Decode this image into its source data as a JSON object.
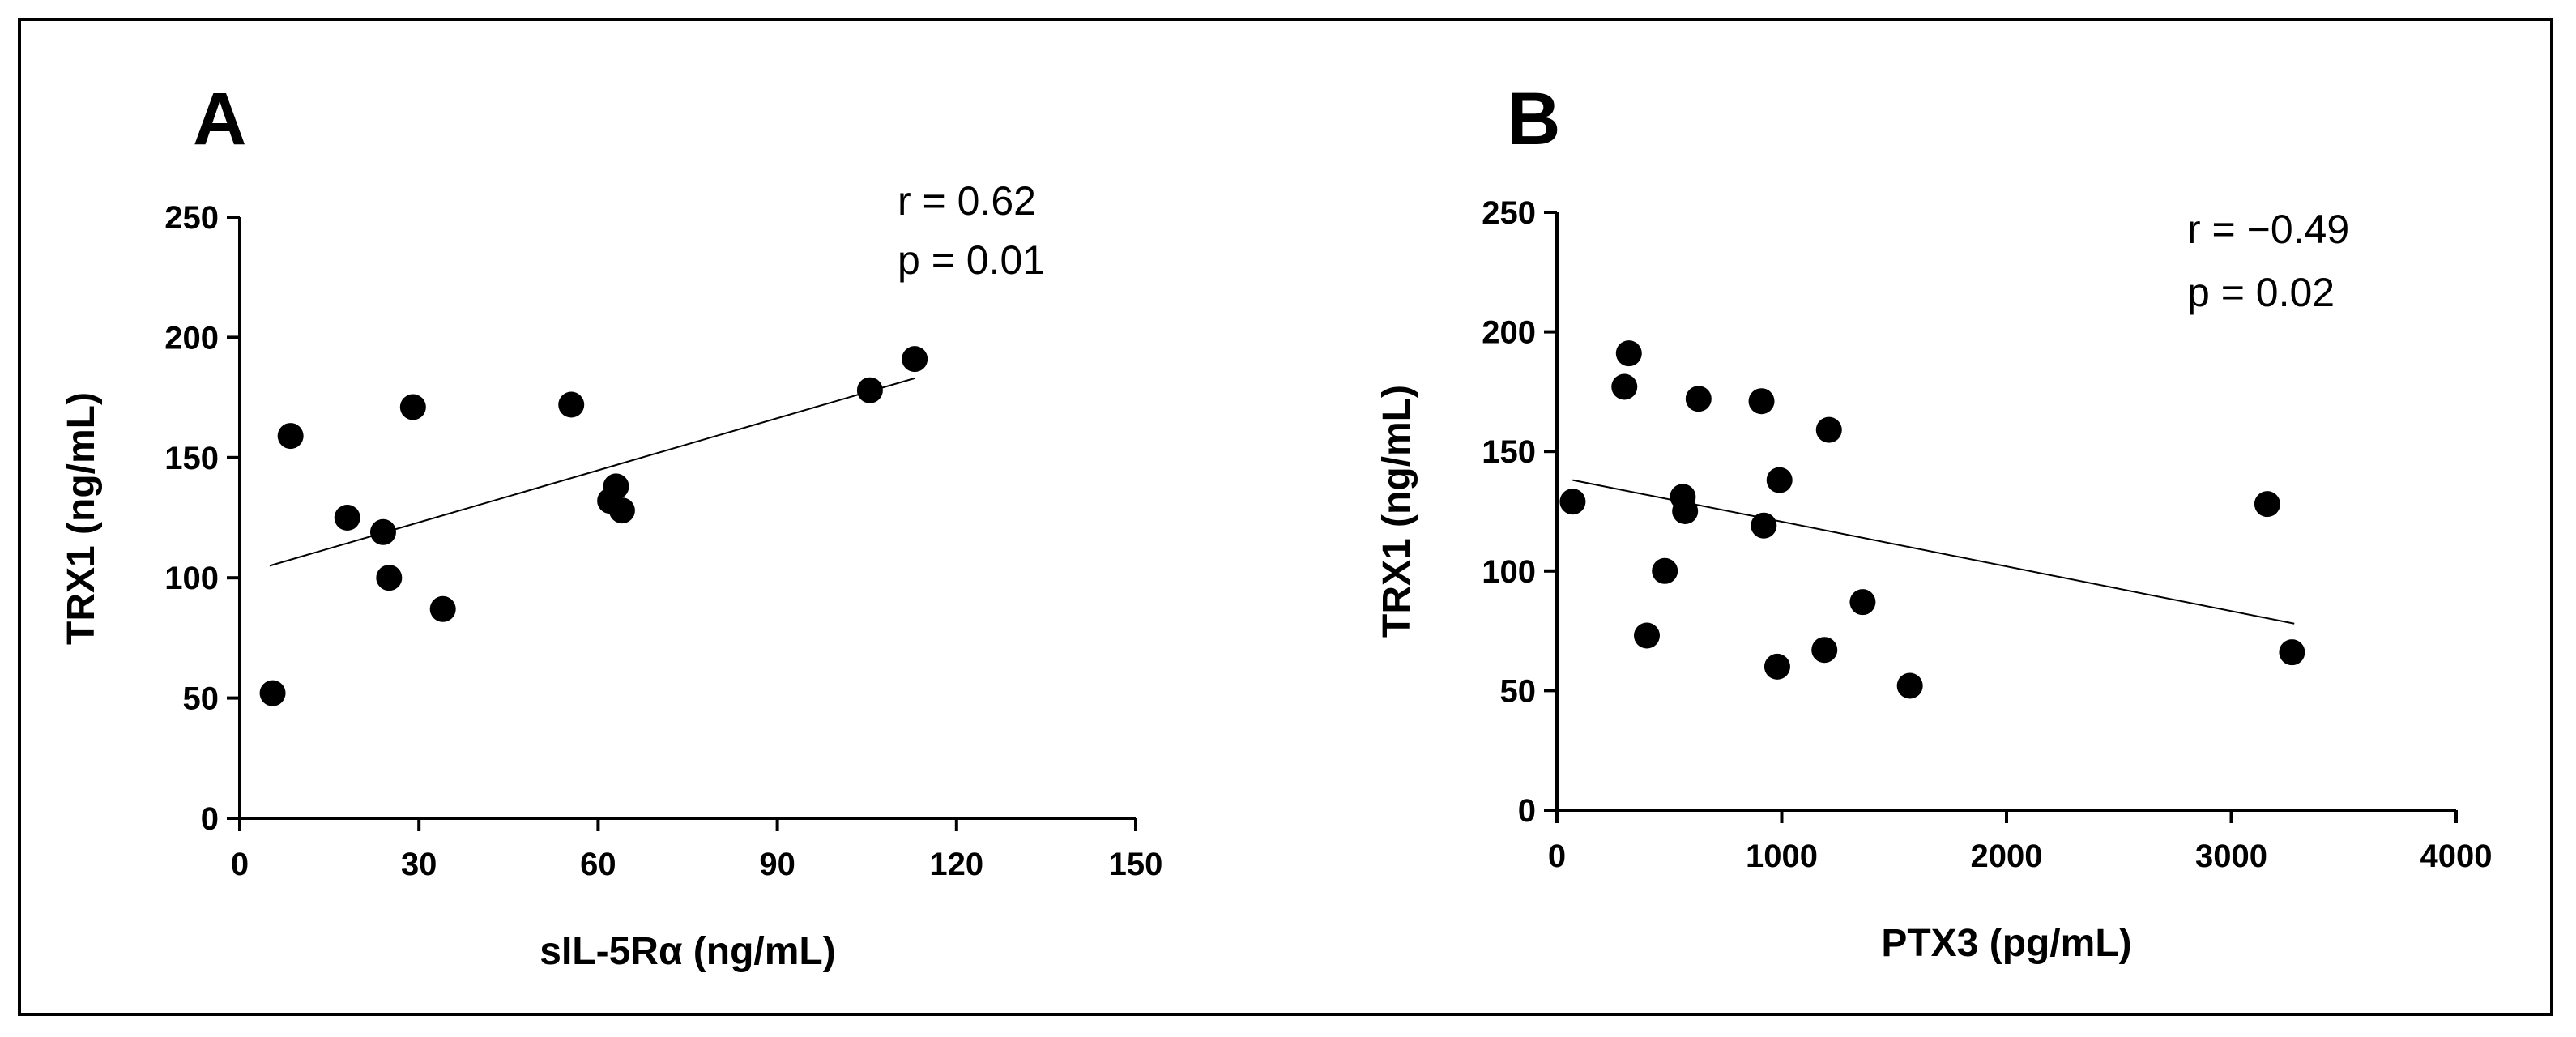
{
  "chart_data": [
    {
      "panel": "A",
      "type": "scatter",
      "xlabel": "sIL-5Rα (ng/mL)",
      "ylabel": "TRX1 (ng/mL)",
      "xlim": [
        0,
        150
      ],
      "ylim": [
        0,
        250
      ],
      "xticks": [
        0,
        30,
        60,
        90,
        120,
        150
      ],
      "yticks": [
        0,
        50,
        100,
        150,
        200,
        250
      ],
      "annotation": {
        "r": "r = 0.62",
        "p": "p = 0.01"
      },
      "trendline": {
        "x": [
          5,
          113
        ],
        "y": [
          105,
          183
        ]
      },
      "points": [
        {
          "x": 5.5,
          "y": 52
        },
        {
          "x": 8.5,
          "y": 159
        },
        {
          "x": 18,
          "y": 125
        },
        {
          "x": 24,
          "y": 119
        },
        {
          "x": 25,
          "y": 100
        },
        {
          "x": 29,
          "y": 171
        },
        {
          "x": 34,
          "y": 87
        },
        {
          "x": 55.5,
          "y": 172
        },
        {
          "x": 62,
          "y": 132
        },
        {
          "x": 63,
          "y": 138
        },
        {
          "x": 64,
          "y": 128
        },
        {
          "x": 105.5,
          "y": 178
        },
        {
          "x": 113,
          "y": 191
        }
      ]
    },
    {
      "panel": "B",
      "type": "scatter",
      "xlabel": "PTX3 (pg/mL)",
      "ylabel": "TRX1 (ng/mL)",
      "xlim": [
        0,
        4000
      ],
      "ylim": [
        0,
        250
      ],
      "xticks": [
        0,
        1000,
        2000,
        3000,
        4000
      ],
      "yticks": [
        0,
        50,
        100,
        150,
        200,
        250
      ],
      "annotation": {
        "r": "r = −0.49",
        "p": "p = 0.02"
      },
      "trendline": {
        "x": [
          70,
          3280
        ],
        "y": [
          138,
          78
        ]
      },
      "points": [
        {
          "x": 70,
          "y": 129
        },
        {
          "x": 300,
          "y": 177
        },
        {
          "x": 320,
          "y": 191
        },
        {
          "x": 400,
          "y": 73
        },
        {
          "x": 480,
          "y": 100
        },
        {
          "x": 560,
          "y": 131
        },
        {
          "x": 570,
          "y": 125
        },
        {
          "x": 630,
          "y": 172
        },
        {
          "x": 910,
          "y": 171
        },
        {
          "x": 920,
          "y": 119
        },
        {
          "x": 980,
          "y": 60
        },
        {
          "x": 990,
          "y": 138
        },
        {
          "x": 1190,
          "y": 67
        },
        {
          "x": 1210,
          "y": 159
        },
        {
          "x": 1360,
          "y": 87
        },
        {
          "x": 1570,
          "y": 52
        },
        {
          "x": 3160,
          "y": 128
        },
        {
          "x": 3270,
          "y": 66
        }
      ]
    }
  ]
}
